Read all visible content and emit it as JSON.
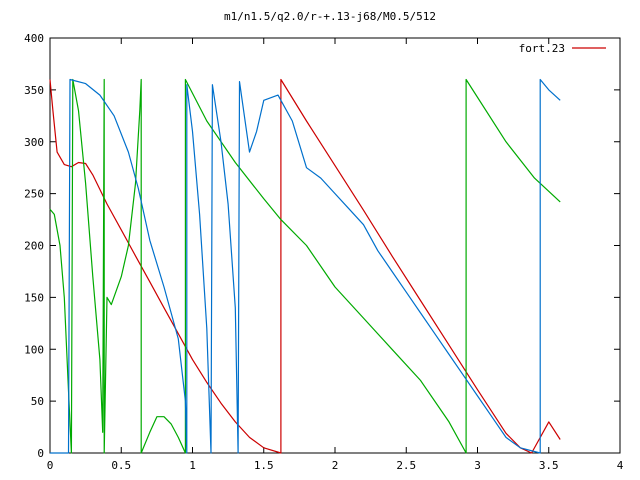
{
  "chart_data": {
    "type": "line",
    "title": "m1/n1.5/q2.0/r-+.13-j68/M0.5/512",
    "xlabel": "",
    "ylabel": "",
    "xlim": [
      0,
      4
    ],
    "ylim": [
      0,
      400
    ],
    "x_ticks": [
      0,
      0.5,
      1,
      1.5,
      2,
      2.5,
      3,
      3.5,
      4
    ],
    "x_tick_labels": [
      "0",
      "0.5",
      "1",
      "1.5",
      "2",
      "2.5",
      "3",
      "3.5",
      "4"
    ],
    "y_ticks": [
      0,
      50,
      100,
      150,
      200,
      250,
      300,
      350,
      400
    ],
    "y_tick_labels": [
      "0",
      "50",
      "100",
      "150",
      "200",
      "250",
      "300",
      "350",
      "400"
    ],
    "grid": false,
    "legend_position": "top-right",
    "series": [
      {
        "name": "fort.23",
        "color": "#cc0000",
        "points": [
          [
            0,
            360
          ],
          [
            0.02,
            330
          ],
          [
            0.05,
            290
          ],
          [
            0.1,
            278
          ],
          [
            0.15,
            276
          ],
          [
            0.2,
            280
          ],
          [
            0.25,
            279
          ],
          [
            0.3,
            268
          ],
          [
            0.4,
            240
          ],
          [
            0.5,
            215
          ],
          [
            0.6,
            190
          ],
          [
            0.7,
            165
          ],
          [
            0.8,
            140
          ],
          [
            0.9,
            115
          ],
          [
            1.0,
            90
          ],
          [
            1.1,
            68
          ],
          [
            1.2,
            48
          ],
          [
            1.3,
            30
          ],
          [
            1.4,
            15
          ],
          [
            1.5,
            5
          ],
          [
            1.62,
            0
          ],
          [
            1.62,
            360
          ],
          [
            1.8,
            320
          ],
          [
            2.0,
            277
          ],
          [
            2.2,
            234
          ],
          [
            2.4,
            190
          ],
          [
            2.6,
            147
          ],
          [
            2.8,
            104
          ],
          [
            3.0,
            61
          ],
          [
            3.2,
            19
          ],
          [
            3.3,
            5
          ],
          [
            3.38,
            0
          ],
          [
            3.5,
            30
          ],
          [
            3.58,
            13
          ]
        ]
      },
      {
        "name": "",
        "color": "#00aa00",
        "points": [
          [
            0,
            235
          ],
          [
            0.03,
            230
          ],
          [
            0.07,
            200
          ],
          [
            0.1,
            150
          ],
          [
            0.13,
            60
          ],
          [
            0.15,
            0
          ],
          [
            0.16,
            360
          ],
          [
            0.2,
            330
          ],
          [
            0.25,
            260
          ],
          [
            0.3,
            170
          ],
          [
            0.35,
            90
          ],
          [
            0.37,
            20
          ],
          [
            0.38,
            360
          ],
          [
            0.38,
            0
          ],
          [
            0.4,
            150
          ],
          [
            0.43,
            143
          ],
          [
            0.5,
            170
          ],
          [
            0.55,
            200
          ],
          [
            0.6,
            260
          ],
          [
            0.63,
            330
          ],
          [
            0.64,
            360
          ],
          [
            0.64,
            0
          ],
          [
            0.7,
            20
          ],
          [
            0.75,
            35
          ],
          [
            0.8,
            35
          ],
          [
            0.85,
            28
          ],
          [
            0.9,
            15
          ],
          [
            0.95,
            0
          ],
          [
            0.95,
            360
          ],
          [
            1.1,
            320
          ],
          [
            1.3,
            280
          ],
          [
            1.5,
            245
          ],
          [
            1.62,
            225
          ],
          [
            1.8,
            200
          ],
          [
            2.0,
            160
          ],
          [
            2.2,
            130
          ],
          [
            2.4,
            100
          ],
          [
            2.6,
            70
          ],
          [
            2.8,
            30
          ],
          [
            2.92,
            0
          ],
          [
            2.92,
            360
          ],
          [
            3.2,
            300
          ],
          [
            3.4,
            265
          ],
          [
            3.58,
            242
          ]
        ]
      },
      {
        "name": "",
        "color": "#0070cc",
        "points": [
          [
            0,
            0
          ],
          [
            0.13,
            0
          ],
          [
            0.14,
            360
          ],
          [
            0.25,
            356
          ],
          [
            0.35,
            345
          ],
          [
            0.45,
            325
          ],
          [
            0.55,
            290
          ],
          [
            0.62,
            255
          ],
          [
            0.7,
            205
          ],
          [
            0.8,
            160
          ],
          [
            0.9,
            110
          ],
          [
            0.95,
            50
          ],
          [
            0.96,
            0
          ],
          [
            0.96,
            355
          ],
          [
            1.0,
            310
          ],
          [
            1.05,
            230
          ],
          [
            1.1,
            120
          ],
          [
            1.13,
            0
          ],
          [
            1.14,
            355
          ],
          [
            1.2,
            300
          ],
          [
            1.25,
            240
          ],
          [
            1.3,
            140
          ],
          [
            1.32,
            0
          ],
          [
            1.33,
            358
          ],
          [
            1.4,
            290
          ],
          [
            1.45,
            310
          ],
          [
            1.5,
            340
          ],
          [
            1.6,
            345
          ],
          [
            1.7,
            320
          ],
          [
            1.8,
            275
          ],
          [
            1.9,
            265
          ],
          [
            2.0,
            250
          ],
          [
            2.1,
            235
          ],
          [
            2.2,
            220
          ],
          [
            2.3,
            195
          ],
          [
            2.4,
            175
          ],
          [
            2.5,
            155
          ],
          [
            2.6,
            135
          ],
          [
            2.7,
            115
          ],
          [
            2.8,
            95
          ],
          [
            2.9,
            75
          ],
          [
            3.0,
            55
          ],
          [
            3.1,
            35
          ],
          [
            3.2,
            15
          ],
          [
            3.3,
            5
          ],
          [
            3.44,
            0
          ],
          [
            3.44,
            360
          ],
          [
            3.5,
            350
          ],
          [
            3.58,
            340
          ]
        ]
      }
    ]
  }
}
